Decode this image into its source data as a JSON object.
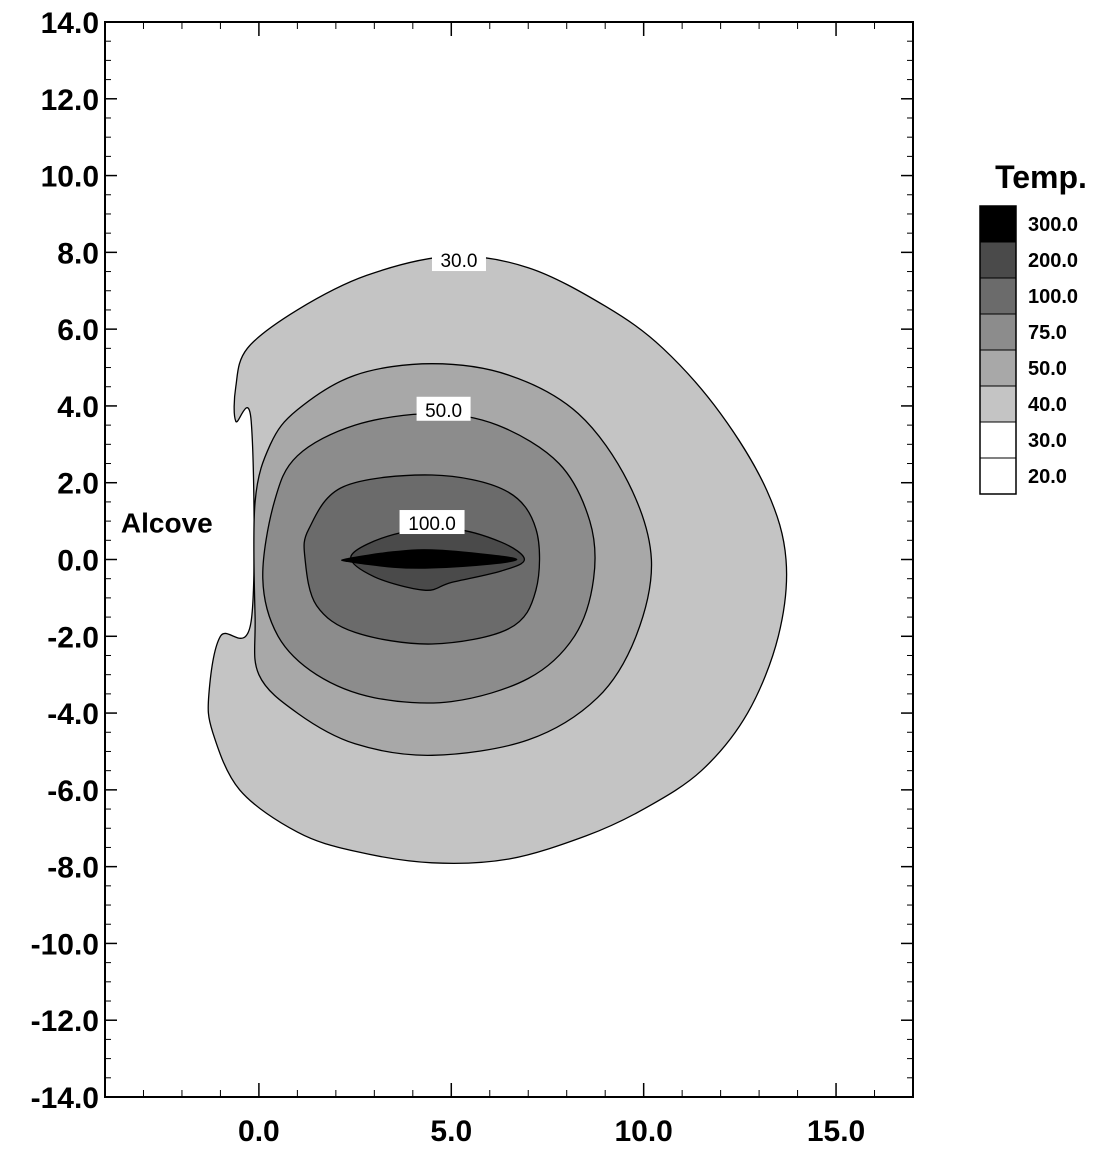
{
  "chart_data": {
    "type": "contour",
    "title": "",
    "xlabel": "",
    "ylabel": "",
    "xlim": [
      -4,
      17
    ],
    "ylim": [
      -14,
      14
    ],
    "x_ticks": [
      "0.0",
      "5.0",
      "10.0",
      "15.0"
    ],
    "x_tick_values": [
      0,
      5,
      10,
      15
    ],
    "y_ticks": [
      "14.0",
      "12.0",
      "10.0",
      "8.0",
      "6.0",
      "4.0",
      "2.0",
      "0.0",
      "-2.0",
      "-4.0",
      "-6.0",
      "-8.0",
      "-10.0",
      "-12.0",
      "-14.0"
    ],
    "y_tick_values": [
      14,
      12,
      10,
      8,
      6,
      4,
      2,
      0,
      -2,
      -4,
      -6,
      -8,
      -10,
      -12,
      -14
    ],
    "legend": {
      "title": "Temp.",
      "placement": "right",
      "levels": [
        {
          "label": "300.0",
          "value": 300,
          "color": "#000000"
        },
        {
          "label": "200.0",
          "value": 200,
          "color": "#4a4a4a"
        },
        {
          "label": "100.0",
          "value": 100,
          "color": "#6b6b6b"
        },
        {
          "label": "75.0",
          "value": 75,
          "color": "#8c8c8c"
        },
        {
          "label": "50.0",
          "value": 50,
          "color": "#a8a8a8"
        },
        {
          "label": "40.0",
          "value": 40,
          "color": "#c4c4c4"
        },
        {
          "label": "30.0",
          "value": 30,
          "color": "#ffffff"
        },
        {
          "label": "20.0",
          "value": 20,
          "color": "#ffffff"
        }
      ]
    },
    "contours": [
      {
        "level": 30,
        "fill": "#c4c4c4",
        "label": "30.0",
        "label_at": [
          5.2,
          7.8
        ],
        "points": [
          [
            -0.6,
            4.5
          ],
          [
            -0.3,
            5.5
          ],
          [
            1.0,
            6.5
          ],
          [
            2.8,
            7.4
          ],
          [
            5.0,
            7.9
          ],
          [
            7.0,
            7.6
          ],
          [
            9.0,
            6.6
          ],
          [
            10.5,
            5.5
          ],
          [
            12.0,
            3.8
          ],
          [
            13.2,
            1.8
          ],
          [
            13.7,
            0
          ],
          [
            13.5,
            -2
          ],
          [
            12.7,
            -4
          ],
          [
            11.5,
            -5.5
          ],
          [
            10.0,
            -6.5
          ],
          [
            8.5,
            -7.2
          ],
          [
            6.5,
            -7.8
          ],
          [
            4.5,
            -7.9
          ],
          [
            2.5,
            -7.6
          ],
          [
            1.0,
            -7.1
          ],
          [
            -0.5,
            -6.0
          ],
          [
            -1.2,
            -4.5
          ],
          [
            -1.3,
            -3.5
          ],
          [
            -1.0,
            -2.0
          ],
          [
            -0.2,
            -1.6
          ],
          [
            -0.2,
            3.6
          ],
          [
            -0.6,
            3.6
          ]
        ]
      },
      {
        "level": 40,
        "fill": "#a8a8a8",
        "label": "",
        "points": [
          [
            0.3,
            3.0
          ],
          [
            1.0,
            3.9
          ],
          [
            2.5,
            4.8
          ],
          [
            4.5,
            5.1
          ],
          [
            6.5,
            4.8
          ],
          [
            8.3,
            3.8
          ],
          [
            9.6,
            2.0
          ],
          [
            10.2,
            0
          ],
          [
            9.8,
            -2.0
          ],
          [
            8.8,
            -3.6
          ],
          [
            7.0,
            -4.7
          ],
          [
            4.5,
            -5.1
          ],
          [
            2.5,
            -4.8
          ],
          [
            1.0,
            -4.0
          ],
          [
            0.0,
            -3.0
          ],
          [
            -0.1,
            -1.5
          ],
          [
            -0.1,
            1.5
          ]
        ]
      },
      {
        "level": 50,
        "fill": "#8c8c8c",
        "label": "50.0",
        "label_at": [
          4.8,
          3.9
        ],
        "points": [
          [
            0.4,
            1.5
          ],
          [
            1.0,
            2.7
          ],
          [
            2.5,
            3.5
          ],
          [
            4.5,
            3.8
          ],
          [
            6.2,
            3.5
          ],
          [
            7.8,
            2.5
          ],
          [
            8.6,
            1.0
          ],
          [
            8.7,
            -0.5
          ],
          [
            8.2,
            -2.0
          ],
          [
            7.0,
            -3.1
          ],
          [
            5.0,
            -3.7
          ],
          [
            3.0,
            -3.6
          ],
          [
            1.5,
            -3.0
          ],
          [
            0.5,
            -2.0
          ],
          [
            0.1,
            -0.5
          ]
        ]
      },
      {
        "level": 75,
        "fill": "#6b6b6b",
        "label": "",
        "points": [
          [
            1.3,
            0.8
          ],
          [
            2.2,
            1.9
          ],
          [
            4.5,
            2.2
          ],
          [
            6.4,
            1.8
          ],
          [
            7.2,
            0.8
          ],
          [
            7.2,
            -0.8
          ],
          [
            6.5,
            -1.8
          ],
          [
            4.5,
            -2.2
          ],
          [
            2.5,
            -1.9
          ],
          [
            1.5,
            -1.2
          ],
          [
            1.2,
            0
          ]
        ]
      },
      {
        "level": 100,
        "fill": "#4a4a4a",
        "label": "100.0",
        "label_at": [
          4.5,
          0.95
        ],
        "points": [
          [
            2.4,
            0.1
          ],
          [
            3.5,
            0.65
          ],
          [
            5.0,
            0.8
          ],
          [
            6.3,
            0.45
          ],
          [
            6.9,
            0
          ],
          [
            6.3,
            -0.3
          ],
          [
            5.0,
            -0.6
          ],
          [
            4.3,
            -0.8
          ],
          [
            3.0,
            -0.45
          ]
        ]
      },
      {
        "level": 300,
        "fill": "#000000",
        "label": "",
        "points": [
          [
            2.3,
            0.02
          ],
          [
            3.5,
            0.2
          ],
          [
            4.5,
            0.25
          ],
          [
            6.0,
            0.12
          ],
          [
            6.7,
            0
          ],
          [
            6.0,
            -0.12
          ],
          [
            4.5,
            -0.22
          ],
          [
            3.5,
            -0.2
          ],
          [
            2.3,
            -0.05
          ]
        ]
      }
    ],
    "annotations": [
      {
        "text": "Alcove",
        "x": -1.2,
        "y": 0.7
      }
    ]
  }
}
